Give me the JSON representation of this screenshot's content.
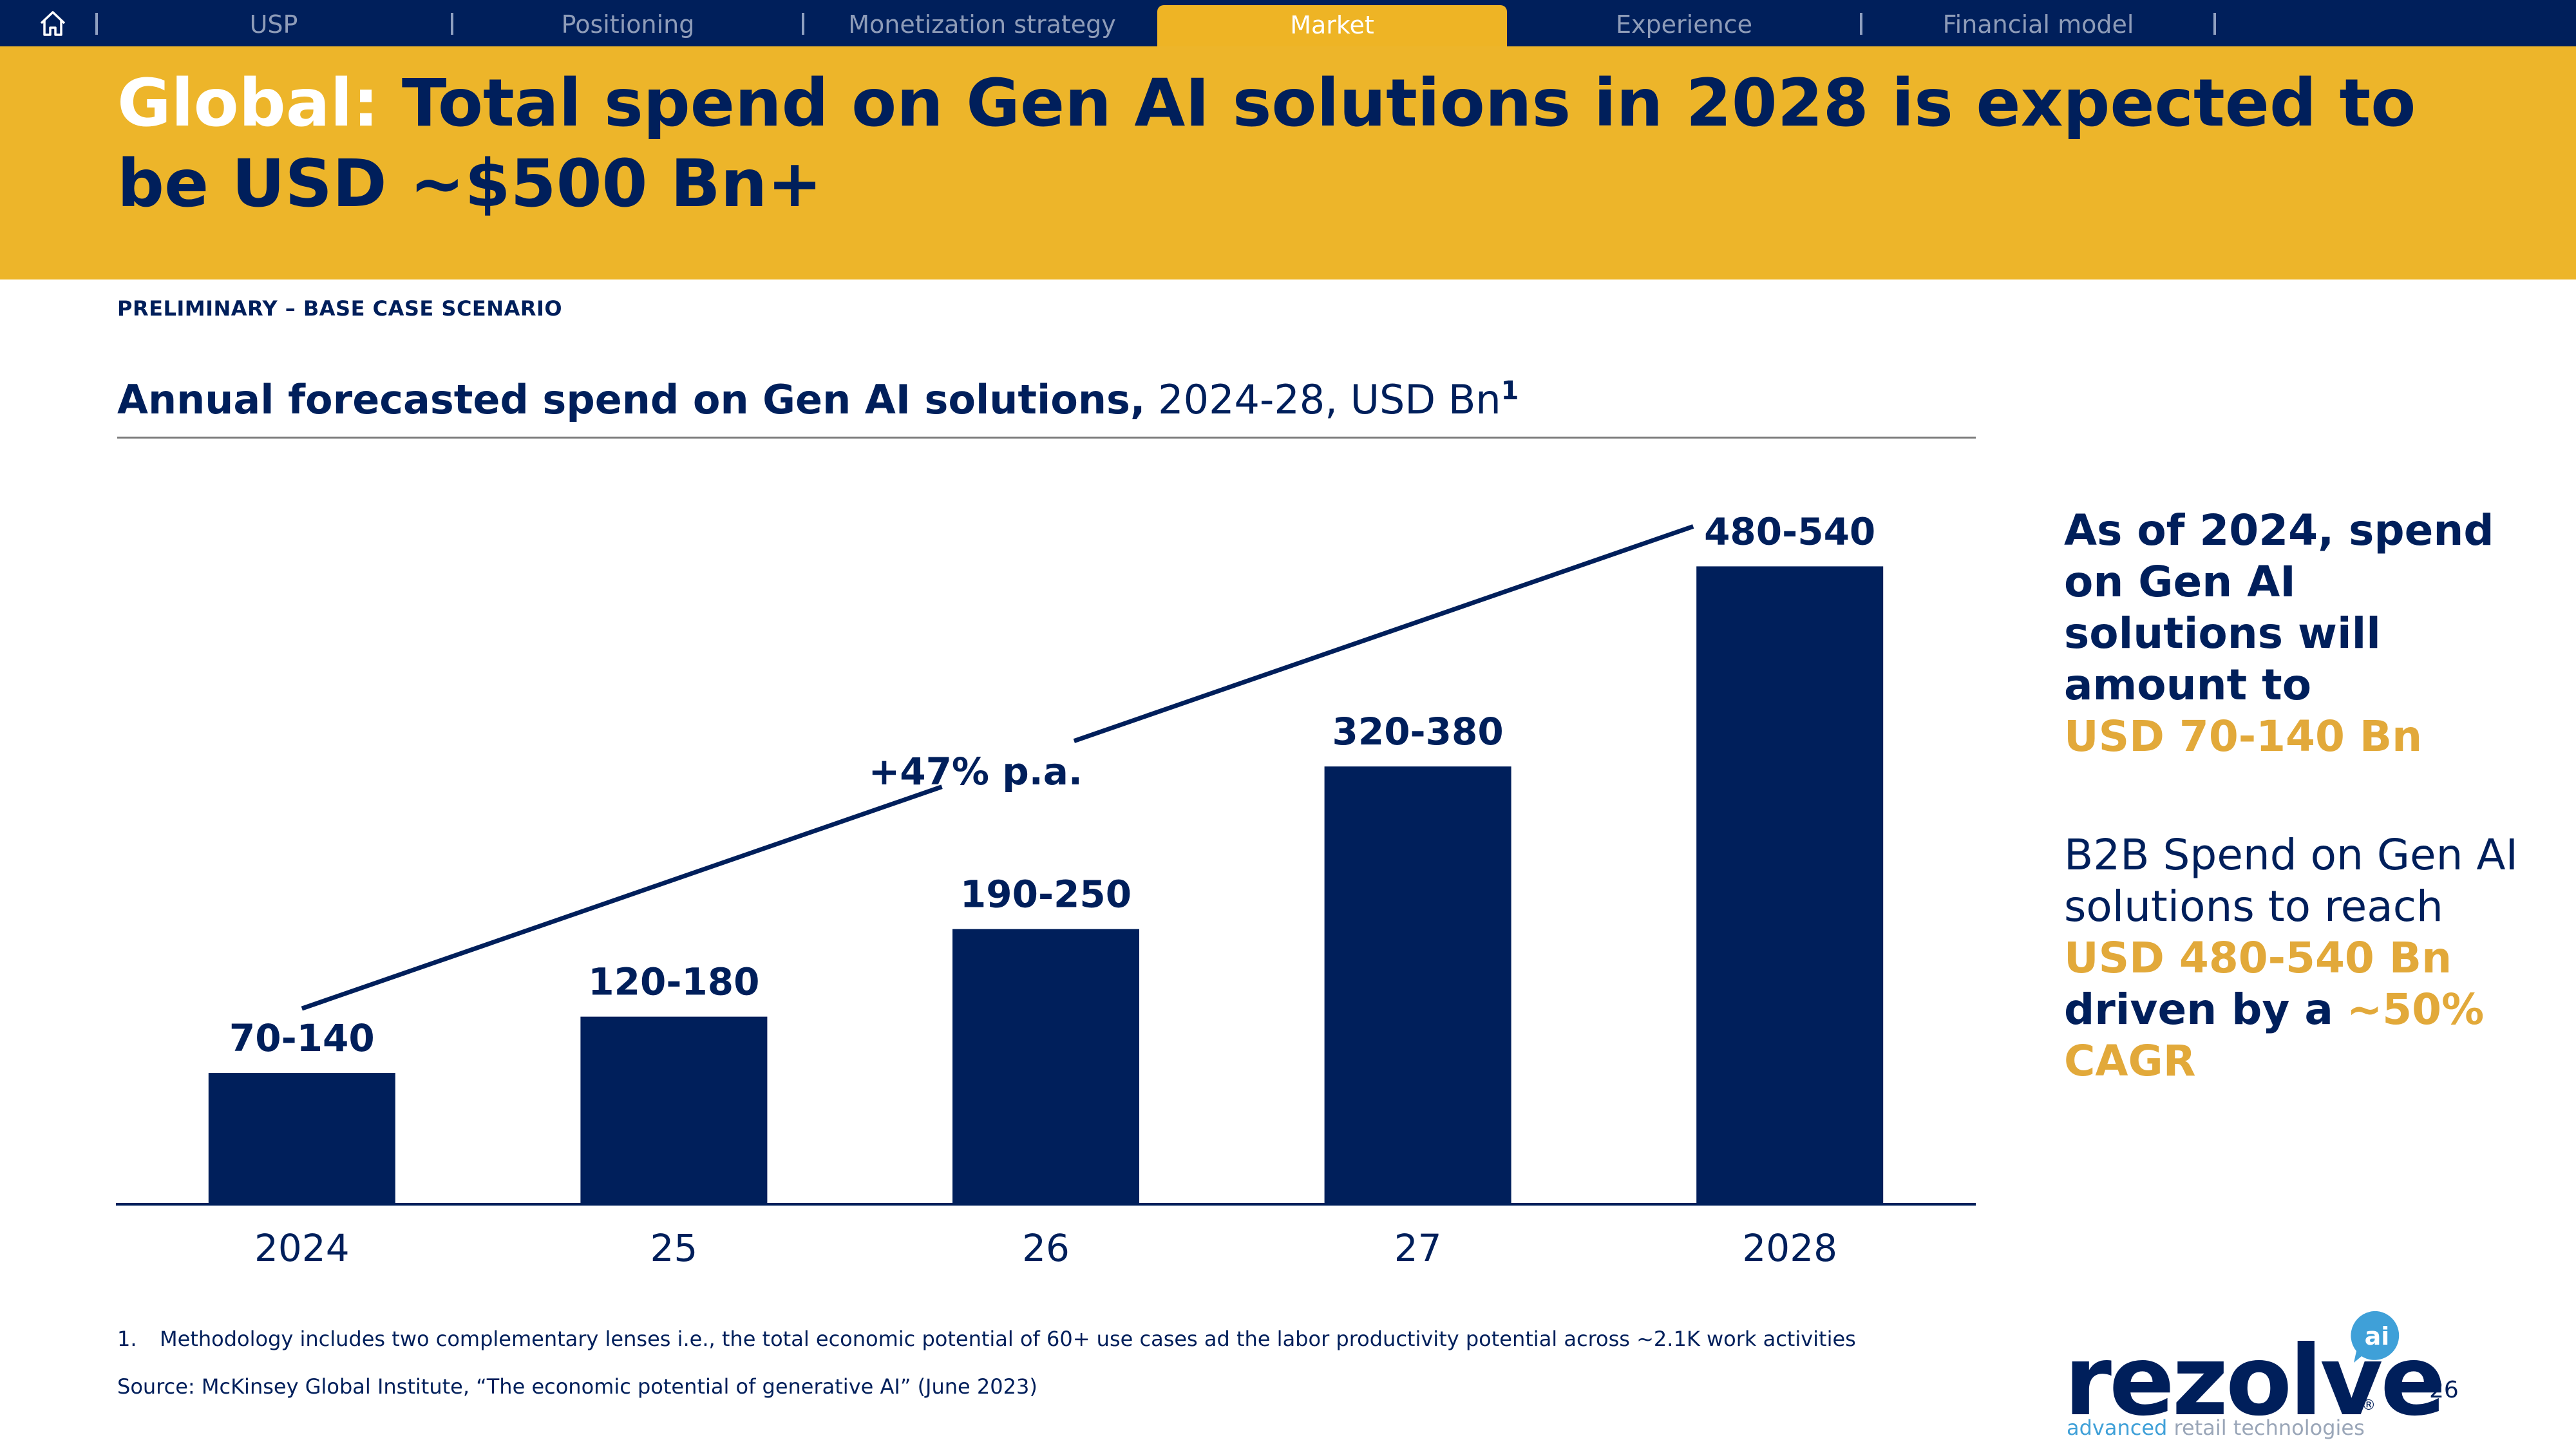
{
  "nav": {
    "tabs": [
      {
        "label": "USP",
        "active": false
      },
      {
        "label": "Positioning",
        "active": false
      },
      {
        "label": "Monetization strategy",
        "active": false
      },
      {
        "label": "Market",
        "active": true
      },
      {
        "label": "Experience",
        "active": false
      },
      {
        "label": "Financial model",
        "active": false
      }
    ]
  },
  "header": {
    "title_lead": "Global:",
    "title_rest": "Total spend on Gen AI solutions in 2028 is expected to be USD ~$500 Bn+"
  },
  "scenario": "PRELIMINARY – BASE CASE SCENARIO",
  "chart_heading": {
    "bold": "Annual forecasted spend on Gen AI solutions,",
    "normal": "2024-28, USD Bn",
    "footnote_ref": "1"
  },
  "chart_data": {
    "type": "bar",
    "title": "Annual forecasted spend on Gen AI solutions, 2024-28, USD Bn",
    "categories": [
      "2024",
      "25",
      "26",
      "27",
      "2028"
    ],
    "labels": [
      "70-140",
      "120-180",
      "190-250",
      "320-380",
      "480-540"
    ],
    "values": [
      105,
      150,
      220,
      350,
      510
    ],
    "ylim": [
      0,
      520
    ],
    "growth_annotation": "+47% p.a.",
    "xlabel": "",
    "ylabel": "",
    "grid": false,
    "colors": {
      "bar": "#001f5b",
      "label": "#001f5b",
      "axis": "#001f5b"
    }
  },
  "sidebar": {
    "point1_text": "As of 2024, spend on Gen AI solutions will amount to",
    "point1_highlight": "USD 70-140 Bn",
    "point2_text": "B2B Spend on Gen AI solutions to reach",
    "point2_highlight": "USD 480-540 Bn",
    "point2_bold": "driven by a",
    "point2_highlight2": "~50% CAGR"
  },
  "footnotes": {
    "n1_number": "1.",
    "n1_text": "Methodology includes two complementary lenses i.e., the total economic potential of 60+ use cases ad the labor productivity potential across ~2.1K work activities",
    "source": "Source: McKinsey Global Institute, “The economic potential of generative AI” (June 2023)"
  },
  "page_number": "26",
  "logo": {
    "wordmark": "rezolve",
    "badge": "ai",
    "reg": "®",
    "tagline_a": "advanced",
    "tagline_b": "retail technologies"
  },
  "colors": {
    "navy": "#001f5b",
    "gold": "#edb52a",
    "highlight": "#e2a93a"
  }
}
